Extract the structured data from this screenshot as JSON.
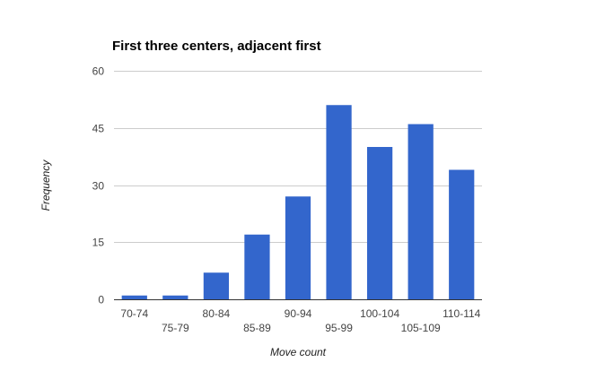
{
  "chart_data": {
    "type": "bar",
    "title": "First three centers, adjacent first",
    "xlabel": "Move count",
    "ylabel": "Frequency",
    "categories": [
      "70-74",
      "75-79",
      "80-84",
      "85-89",
      "90-94",
      "95-99",
      "100-104",
      "105-109",
      "110-114"
    ],
    "values": [
      1,
      1,
      7,
      17,
      27,
      51,
      40,
      46,
      34
    ],
    "ylim": [
      0,
      60
    ],
    "yticks": [
      0,
      15,
      30,
      45,
      60
    ],
    "grid": true,
    "legend": "none",
    "bar_color": "#3366cc"
  }
}
